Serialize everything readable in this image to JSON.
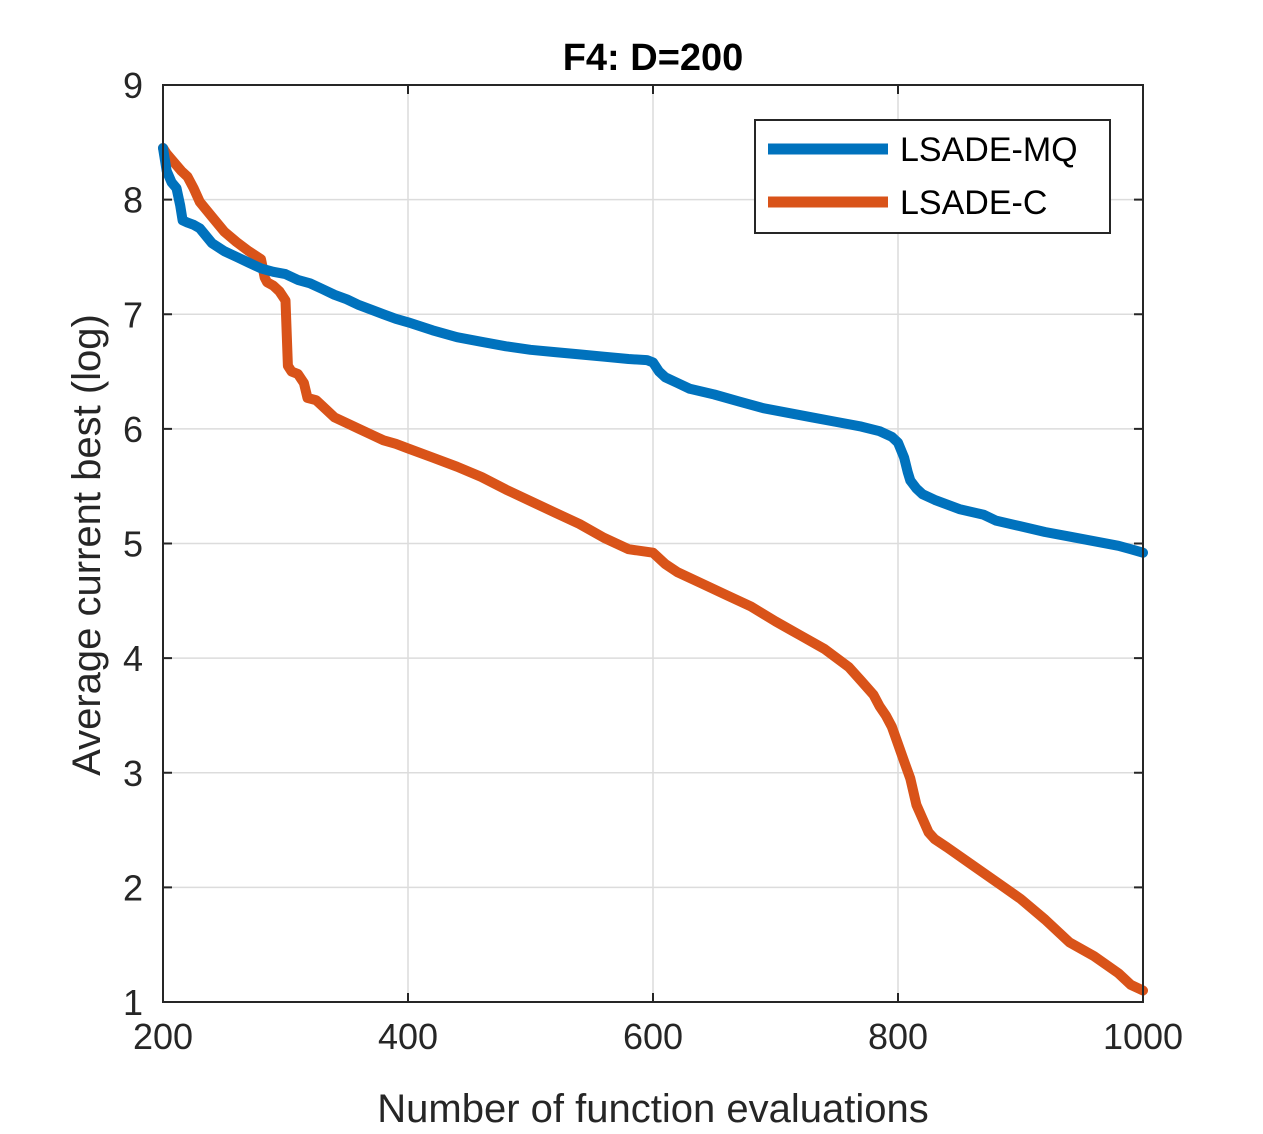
{
  "chart_data": {
    "type": "line",
    "title": "F4: D=200",
    "xlabel": "Number of function evaluations",
    "ylabel": "Average current best (log)",
    "xlim": [
      200,
      1000
    ],
    "ylim": [
      1,
      9
    ],
    "xticks": [
      200,
      400,
      600,
      800,
      1000
    ],
    "yticks": [
      1,
      2,
      3,
      4,
      5,
      6,
      7,
      8,
      9
    ],
    "grid": true,
    "legend_position": "top-right",
    "series": [
      {
        "name": "LSADE-MQ",
        "color": "#0072BD",
        "x": [
          200,
          203,
          207,
          211,
          214,
          216,
          220,
          225,
          230,
          240,
          250,
          260,
          270,
          280,
          290,
          300,
          310,
          320,
          330,
          340,
          350,
          360,
          370,
          380,
          390,
          400,
          420,
          440,
          460,
          480,
          500,
          520,
          540,
          560,
          580,
          595,
          600,
          605,
          610,
          620,
          630,
          650,
          670,
          690,
          710,
          730,
          750,
          770,
          785,
          795,
          800,
          805,
          808,
          810,
          815,
          820,
          830,
          850,
          870,
          880,
          900,
          920,
          940,
          960,
          980,
          990,
          1000
        ],
        "values": [
          8.45,
          8.25,
          8.15,
          8.1,
          7.95,
          7.82,
          7.8,
          7.78,
          7.75,
          7.62,
          7.55,
          7.5,
          7.45,
          7.4,
          7.37,
          7.35,
          7.3,
          7.27,
          7.22,
          7.17,
          7.13,
          7.08,
          7.04,
          7.0,
          6.96,
          6.93,
          6.86,
          6.8,
          6.76,
          6.72,
          6.69,
          6.67,
          6.65,
          6.63,
          6.61,
          6.6,
          6.58,
          6.5,
          6.45,
          6.4,
          6.35,
          6.3,
          6.24,
          6.18,
          6.14,
          6.1,
          6.06,
          6.02,
          5.98,
          5.93,
          5.88,
          5.75,
          5.62,
          5.55,
          5.48,
          5.43,
          5.38,
          5.3,
          5.25,
          5.2,
          5.15,
          5.1,
          5.06,
          5.02,
          4.98,
          4.95,
          4.92
        ]
      },
      {
        "name": "LSADE-C",
        "color": "#D95319",
        "x": [
          200,
          203,
          207,
          211,
          215,
          220,
          225,
          230,
          240,
          250,
          260,
          270,
          280,
          283,
          285,
          290,
          295,
          300,
          302,
          305,
          310,
          315,
          318,
          325,
          330,
          340,
          350,
          360,
          370,
          380,
          390,
          400,
          420,
          440,
          460,
          480,
          500,
          520,
          540,
          560,
          580,
          600,
          610,
          620,
          640,
          660,
          680,
          700,
          720,
          740,
          760,
          770,
          780,
          785,
          790,
          795,
          800,
          805,
          810,
          815,
          820,
          825,
          830,
          840,
          860,
          880,
          900,
          920,
          940,
          960,
          980,
          990,
          1000
        ],
        "values": [
          8.45,
          8.4,
          8.35,
          8.3,
          8.25,
          8.2,
          8.1,
          7.98,
          7.85,
          7.72,
          7.63,
          7.55,
          7.48,
          7.32,
          7.28,
          7.25,
          7.2,
          7.12,
          6.55,
          6.5,
          6.48,
          6.4,
          6.27,
          6.25,
          6.2,
          6.1,
          6.05,
          6.0,
          5.95,
          5.9,
          5.87,
          5.83,
          5.75,
          5.67,
          5.58,
          5.47,
          5.37,
          5.27,
          5.17,
          5.05,
          4.95,
          4.92,
          4.82,
          4.75,
          4.65,
          4.55,
          4.45,
          4.32,
          4.2,
          4.08,
          3.92,
          3.8,
          3.68,
          3.58,
          3.5,
          3.4,
          3.25,
          3.1,
          2.95,
          2.72,
          2.6,
          2.48,
          2.42,
          2.35,
          2.2,
          2.05,
          1.9,
          1.72,
          1.52,
          1.4,
          1.25,
          1.15,
          1.1
        ]
      }
    ]
  }
}
